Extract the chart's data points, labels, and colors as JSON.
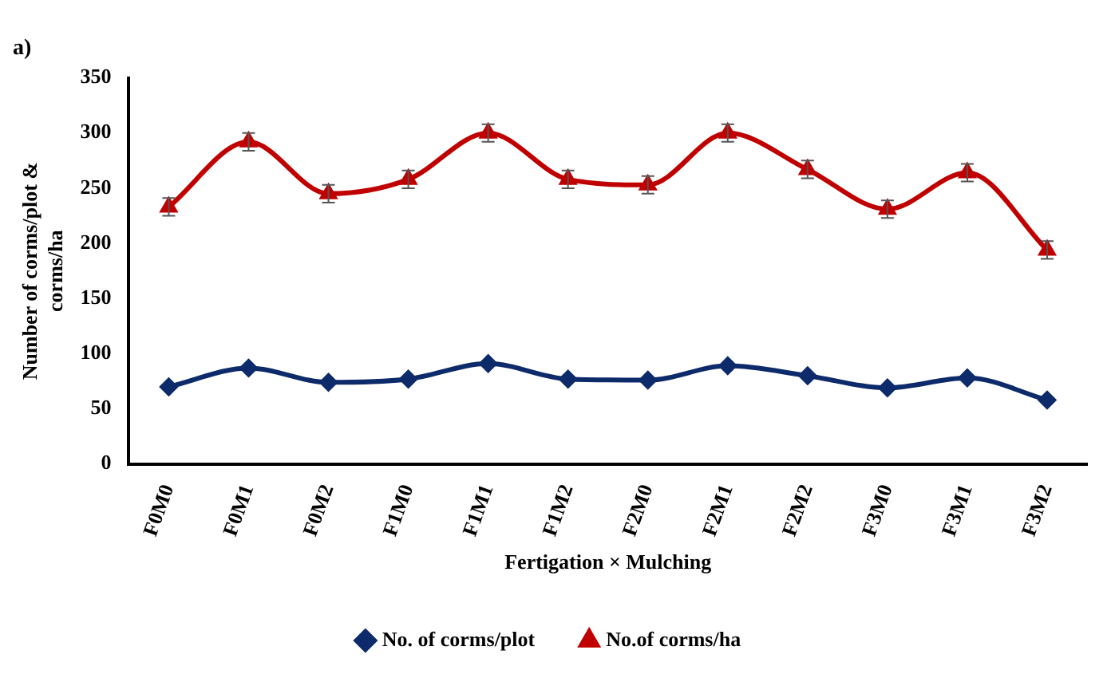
{
  "chart_data": {
    "type": "line",
    "title": "a)",
    "xlabel": "Fertigation × Mulching",
    "ylabel": "Number of corms/plot & corms/ha",
    "categories": [
      "F0M0",
      "F0M1",
      "F0M2",
      "F1M0",
      "F1M1",
      "F1M2",
      "F2M0",
      "F2M1",
      "F2M2",
      "F3M0",
      "F3M1",
      "F3M2"
    ],
    "series": [
      {
        "name": "No. of corms/plot",
        "color": "#0d2a6b",
        "marker": "diamond",
        "values": [
          70,
          87,
          74,
          77,
          91,
          77,
          76,
          89,
          80,
          69,
          78,
          58
        ]
      },
      {
        "name": "No.of corms/ha",
        "color": "#c00000",
        "marker": "triangle",
        "values": [
          233,
          292,
          245,
          258,
          300,
          258,
          253,
          300,
          267,
          231,
          264,
          194
        ],
        "errors": [
          8,
          8,
          8,
          8,
          8,
          8,
          8,
          8,
          8,
          8,
          8,
          8
        ]
      }
    ],
    "ylim": [
      0,
      350
    ],
    "yticks": [
      0,
      50,
      100,
      150,
      200,
      250,
      300,
      350
    ],
    "grid": false,
    "legend": "bottom"
  }
}
